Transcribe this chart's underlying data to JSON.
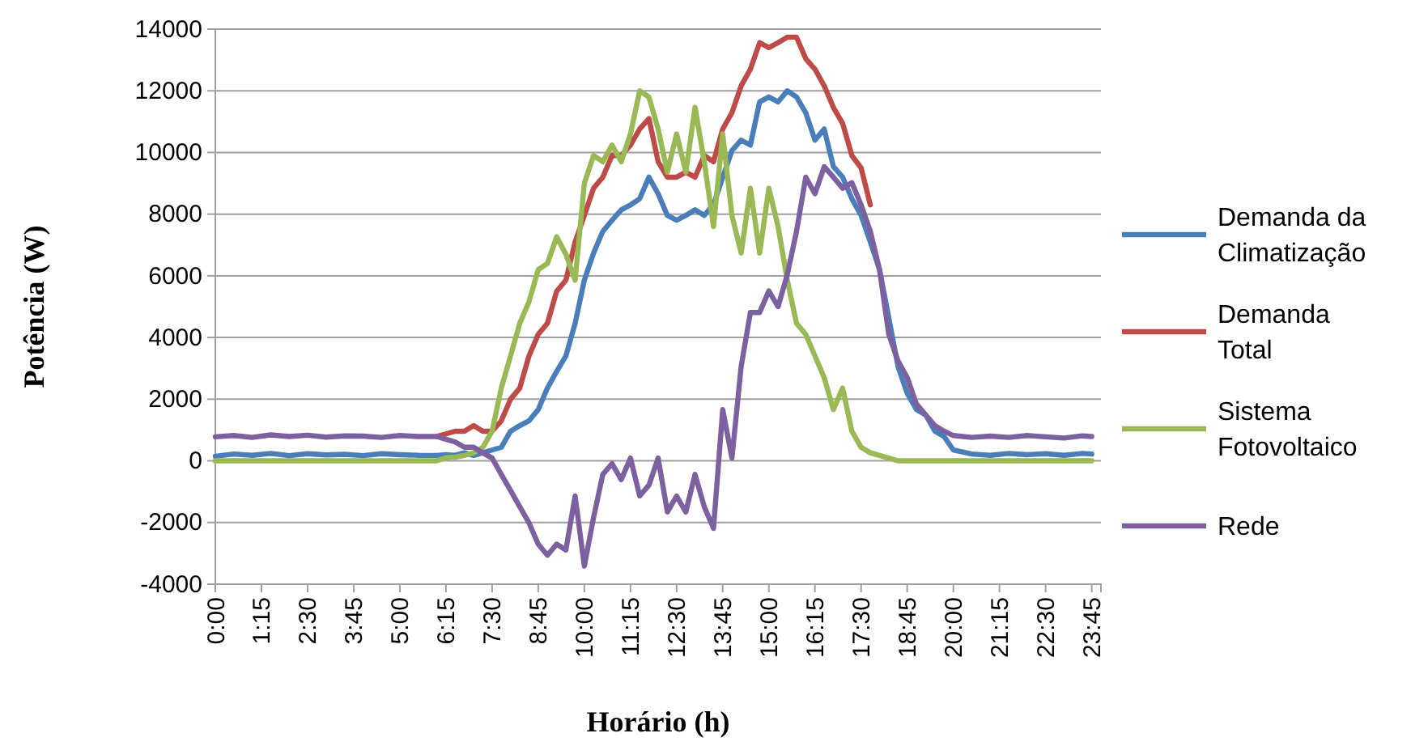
{
  "chart_data": {
    "type": "line",
    "xlabel": "Horário (h)",
    "ylabel": "Potência (W)",
    "x": [
      0,
      0.5,
      1,
      1.5,
      2,
      2.5,
      3,
      3.5,
      4,
      4.5,
      5,
      5.5,
      6,
      6.25,
      6.5,
      6.75,
      7,
      7.25,
      7.5,
      7.75,
      8,
      8.25,
      8.5,
      8.75,
      9,
      9.25,
      9.5,
      9.75,
      10,
      10.25,
      10.5,
      10.75,
      11,
      11.25,
      11.5,
      11.75,
      12,
      12.25,
      12.5,
      12.75,
      13,
      13.25,
      13.5,
      13.75,
      14,
      14.25,
      14.5,
      14.75,
      15,
      15.25,
      15.5,
      15.75,
      16,
      16.25,
      16.5,
      16.75,
      17,
      17.25,
      17.5,
      17.75,
      18,
      18.25,
      18.5,
      18.75,
      19,
      19.25,
      19.5,
      19.75,
      20,
      20.5,
      21,
      21.5,
      22,
      22.5,
      23,
      23.5,
      23.75
    ],
    "series": [
      {
        "name": "Demanda da Climatização",
        "color": "#4a7ebb",
        "values": [
          150,
          220,
          180,
          240,
          170,
          230,
          190,
          210,
          170,
          230,
          200,
          180,
          175,
          200,
          180,
          260,
          175,
          260,
          350,
          440,
          960,
          1140,
          1300,
          1660,
          2360,
          2900,
          3400,
          4460,
          5860,
          6740,
          7440,
          7800,
          8140,
          8300,
          8500,
          9200,
          8660,
          7960,
          7800,
          7960,
          8140,
          7960,
          8300,
          9200,
          10060,
          10400,
          10240,
          11640,
          11800,
          11640,
          12000,
          11800,
          11290,
          10400,
          10760,
          9540,
          9200,
          8500,
          7960,
          7100,
          6200,
          4640,
          3060,
          2190,
          1660,
          1490,
          960,
          790,
          350,
          220,
          180,
          240,
          200,
          230,
          180,
          240,
          220
        ]
      },
      {
        "name": "Demanda Total",
        "color": "#be4b48",
        "values": [
          null,
          null,
          null,
          null,
          null,
          null,
          null,
          null,
          null,
          null,
          null,
          null,
          790,
          875,
          960,
          960,
          1140,
          960,
          960,
          1300,
          2000,
          2360,
          3400,
          4100,
          4460,
          5500,
          5860,
          7100,
          7960,
          8840,
          9200,
          9900,
          9900,
          10240,
          10760,
          11100,
          9700,
          9200,
          9200,
          9360,
          9200,
          9900,
          9700,
          10760,
          11290,
          12160,
          12700,
          13560,
          13400,
          13560,
          13740,
          13740,
          13040,
          12700,
          12160,
          11460,
          10940,
          9900,
          9500,
          8300,
          null,
          null,
          null,
          null,
          null,
          null,
          null,
          null,
          null,
          null,
          null,
          null,
          null,
          null,
          null,
          null,
          null
        ]
      },
      {
        "name": "Sistema Fotovoltaico",
        "color": "#98b954",
        "values": [
          0,
          0,
          0,
          0,
          0,
          0,
          0,
          0,
          0,
          0,
          0,
          0,
          0,
          100,
          120,
          175,
          260,
          440,
          960,
          2360,
          3400,
          4460,
          5160,
          6200,
          6400,
          7260,
          6700,
          5860,
          9000,
          9900,
          9700,
          10240,
          9700,
          10600,
          12000,
          11800,
          10760,
          9360,
          10600,
          9360,
          11460,
          9700,
          7600,
          10600,
          7960,
          6740,
          8840,
          6740,
          8840,
          7600,
          5860,
          4460,
          4100,
          3400,
          2700,
          1660,
          2360,
          960,
          440,
          260,
          175,
          90,
          0,
          0,
          0,
          0,
          0,
          0,
          0,
          0,
          0,
          0,
          0,
          0,
          0,
          0,
          0
        ]
      },
      {
        "name": "Rede",
        "color": "#7d60a0",
        "values": [
          780,
          820,
          760,
          840,
          790,
          830,
          770,
          810,
          800,
          760,
          820,
          790,
          790,
          700,
          610,
          440,
          440,
          260,
          90,
          -440,
          -960,
          -1490,
          -2010,
          -2700,
          -3060,
          -2700,
          -2890,
          -1140,
          -3410,
          -1840,
          -440,
          -90,
          -610,
          90,
          -1140,
          -790,
          90,
          -1660,
          -1140,
          -1660,
          -440,
          -1490,
          -2190,
          1660,
          90,
          3060,
          4810,
          4810,
          5510,
          5000,
          6040,
          7440,
          9200,
          8660,
          9540,
          9200,
          8840,
          9020,
          8300,
          7440,
          6200,
          4100,
          3240,
          2700,
          1840,
          1490,
          1140,
          960,
          820,
          760,
          800,
          760,
          820,
          780,
          740,
          810,
          790
        ]
      }
    ],
    "xlim": [
      0,
      24
    ],
    "xticks": [
      {
        "value": 0,
        "label": "0:00"
      },
      {
        "value": 1.25,
        "label": "1:15"
      },
      {
        "value": 2.5,
        "label": "2:30"
      },
      {
        "value": 3.75,
        "label": "3:45"
      },
      {
        "value": 5,
        "label": "5:00"
      },
      {
        "value": 6.25,
        "label": "6:15"
      },
      {
        "value": 7.5,
        "label": "7:30"
      },
      {
        "value": 8.75,
        "label": "8:45"
      },
      {
        "value": 10,
        "label": "10:00"
      },
      {
        "value": 11.25,
        "label": "11:15"
      },
      {
        "value": 12.5,
        "label": "12:30"
      },
      {
        "value": 13.75,
        "label": "13:45"
      },
      {
        "value": 15,
        "label": "15:00"
      },
      {
        "value": 16.25,
        "label": "16:15"
      },
      {
        "value": 17.5,
        "label": "17:30"
      },
      {
        "value": 18.75,
        "label": "18:45"
      },
      {
        "value": 20,
        "label": "20:00"
      },
      {
        "value": 21.25,
        "label": "21:15"
      },
      {
        "value": 22.5,
        "label": "22:30"
      },
      {
        "value": 23.75,
        "label": "23:45"
      }
    ],
    "ylim": [
      -4000,
      14000
    ],
    "yticks": [
      -4000,
      -2000,
      0,
      2000,
      4000,
      6000,
      8000,
      10000,
      12000,
      14000
    ],
    "grid": "y",
    "legend": "right",
    "marker": "none",
    "line_style": "solid"
  }
}
